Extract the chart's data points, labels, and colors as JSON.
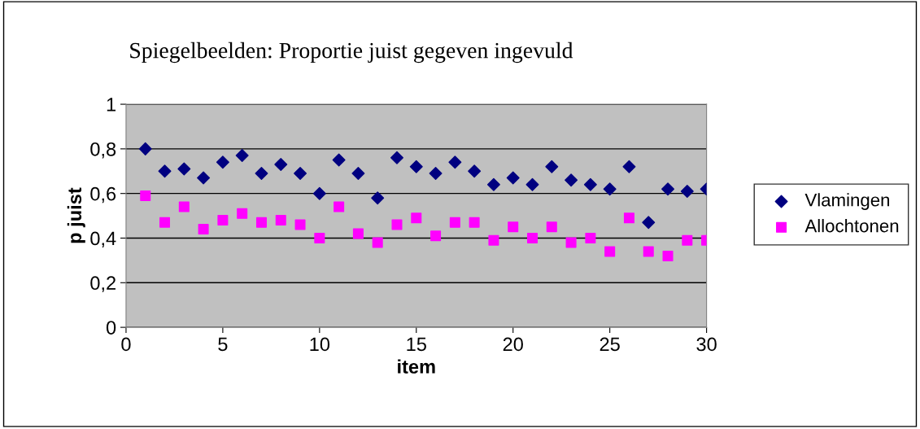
{
  "chart_data": {
    "type": "scatter",
    "title": "Spiegelbeelden: Proportie juist gegeven ingevuld",
    "xlabel": "item",
    "ylabel": "p juist",
    "x": [
      1,
      2,
      3,
      4,
      5,
      6,
      7,
      8,
      9,
      10,
      11,
      12,
      13,
      14,
      15,
      16,
      17,
      18,
      19,
      20,
      21,
      22,
      23,
      24,
      25,
      26,
      27,
      28,
      29,
      30
    ],
    "series": [
      {
        "name": "Vlamingen",
        "color": "#000080",
        "marker": "diamond",
        "values": [
          0.8,
          0.7,
          0.71,
          0.67,
          0.74,
          0.77,
          0.69,
          0.73,
          0.69,
          0.6,
          0.75,
          0.69,
          0.58,
          0.76,
          0.72,
          0.69,
          0.74,
          0.7,
          0.64,
          0.67,
          0.64,
          0.72,
          0.66,
          0.64,
          0.62,
          0.72,
          0.47,
          0.62,
          0.61,
          0.62
        ]
      },
      {
        "name": "Allochtonen",
        "color": "#ff00ff",
        "marker": "square",
        "values": [
          0.59,
          0.47,
          0.54,
          0.44,
          0.48,
          0.51,
          0.47,
          0.48,
          0.46,
          0.4,
          0.54,
          0.42,
          0.38,
          0.46,
          0.49,
          0.41,
          0.47,
          0.47,
          0.39,
          0.45,
          0.4,
          0.45,
          0.38,
          0.4,
          0.34,
          0.49,
          0.34,
          0.32,
          0.39,
          0.39
        ]
      }
    ],
    "xlim": [
      0,
      30
    ],
    "xticks": [
      0,
      5,
      10,
      15,
      20,
      25,
      30
    ],
    "ylim": [
      0,
      1
    ],
    "yticks": [
      {
        "value": 0,
        "label": "0"
      },
      {
        "value": 0.2,
        "label": "0,2"
      },
      {
        "value": 0.4,
        "label": "0,4"
      },
      {
        "value": 0.6,
        "label": "0,6"
      },
      {
        "value": 0.8,
        "label": "0,8"
      },
      {
        "value": 1,
        "label": "1"
      }
    ],
    "grid": "y",
    "legend": "right"
  }
}
